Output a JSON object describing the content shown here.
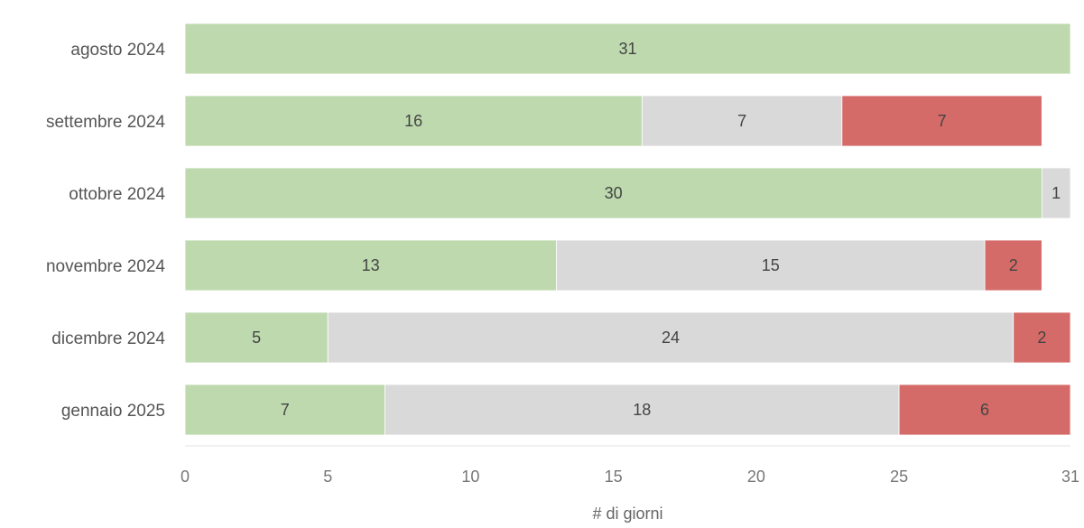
{
  "chart_data": {
    "type": "bar",
    "orientation": "horizontal",
    "stacked": true,
    "categories": [
      "agosto 2024",
      "settembre 2024",
      "ottobre 2024",
      "novembre 2024",
      "dicembre 2024",
      "gennaio 2025"
    ],
    "series": [
      {
        "color": "#bdd9ad",
        "values": [
          31,
          16,
          30,
          13,
          5,
          7
        ]
      },
      {
        "color": "#d9d9d9",
        "values": [
          0,
          7,
          1,
          15,
          24,
          18
        ]
      },
      {
        "color": "#d56b68",
        "values": [
          0,
          7,
          0,
          2,
          2,
          6
        ]
      }
    ],
    "xlabel": "# di giorni",
    "ylabel": "",
    "xlim": [
      0,
      31
    ],
    "xticks": [
      0,
      5,
      10,
      15,
      20,
      25,
      31
    ],
    "grid": false,
    "legend": "none"
  }
}
